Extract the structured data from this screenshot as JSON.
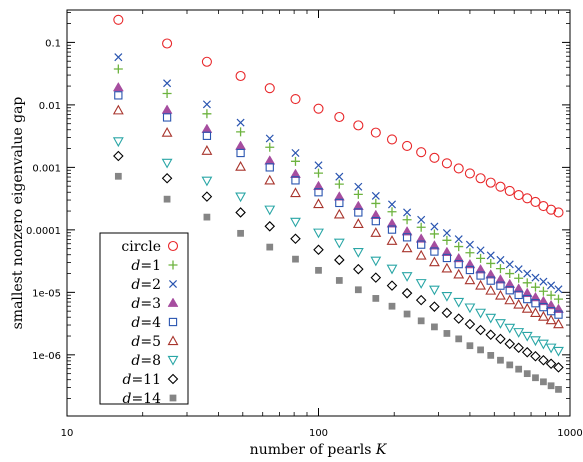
{
  "chart_data": {
    "type": "scatter",
    "title": "",
    "xlabel": "number of pearls K",
    "ylabel": "smallest nonzero eigenvalue gap",
    "x_scale": "log",
    "y_scale": "log",
    "xlim": [
      10,
      1000
    ],
    "ylim": [
      1.05e-07,
      0.33
    ],
    "grid": false,
    "legend_position": "bottom-left",
    "x_ticks": [
      {
        "value": 10,
        "label": "10"
      },
      {
        "value": 100,
        "label": "100"
      },
      {
        "value": 1000,
        "label": "1000"
      }
    ],
    "y_ticks": [
      {
        "value": 0.1,
        "label": "0.1"
      },
      {
        "value": 0.01,
        "label": "0.01"
      },
      {
        "value": 0.001,
        "label": "0.001"
      },
      {
        "value": 0.0001,
        "label": "0.0001"
      },
      {
        "value": 1e-05,
        "label": "1e-05"
      },
      {
        "value": 1e-06,
        "label": "1e-06"
      }
    ],
    "x": [
      16,
      25,
      36,
      49,
      64,
      81,
      100,
      121,
      144,
      169,
      196,
      225,
      256,
      289,
      324,
      361,
      400,
      441,
      484,
      529,
      576,
      625,
      676,
      729,
      784,
      841,
      900
    ],
    "series": [
      {
        "name": "circle",
        "label_prefix": "",
        "label_value": "circle",
        "marker": "circle",
        "color": "#e8272a",
        "values": [
          0.23,
          0.096,
          0.049,
          0.029,
          0.0185,
          0.0124,
          0.0087,
          0.0064,
          0.0047,
          0.0036,
          0.0028,
          0.0022,
          0.00175,
          0.00142,
          0.00116,
          0.00096,
          0.0008,
          0.00067,
          0.00057,
          0.00049,
          0.00042,
          0.00036,
          0.00032,
          0.00028,
          0.00024,
          0.00021,
          0.00019
        ]
      },
      {
        "name": "d=1",
        "label_prefix": "d",
        "label_value": "=1",
        "marker": "plus",
        "color": "#6db33f",
        "values": [
          0.0375,
          0.0152,
          0.0072,
          0.0037,
          0.0021,
          0.00125,
          0.00081,
          0.00054,
          0.00037,
          0.000265,
          0.000195,
          0.000145,
          0.00011,
          8.6e-05,
          6.8e-05,
          5.4e-05,
          4.3e-05,
          3.5e-05,
          2.9e-05,
          2.4e-05,
          2e-05,
          1.68e-05,
          1.42e-05,
          1.21e-05,
          1.04e-05,
          9e-06,
          7.8e-06
        ]
      },
      {
        "name": "d=2",
        "label_prefix": "d",
        "label_value": "=2",
        "marker": "cross",
        "color": "#2a55b0",
        "values": [
          0.058,
          0.0222,
          0.0102,
          0.0052,
          0.0029,
          0.0017,
          0.00108,
          0.00071,
          0.00049,
          0.00035,
          0.000255,
          0.00019,
          0.000145,
          0.000113,
          8.9e-05,
          7.1e-05,
          5.8e-05,
          4.7e-05,
          3.9e-05,
          3.3e-05,
          2.8e-05,
          2.35e-05,
          2e-05,
          1.72e-05,
          1.48e-05,
          1.29e-05,
          1.12e-05
        ]
      },
      {
        "name": "d=3",
        "label_prefix": "d",
        "label_value": "=3",
        "marker": "triangle-filled",
        "color": "#a64d9f",
        "values": [
          0.019,
          0.0083,
          0.0041,
          0.0022,
          0.00128,
          0.00078,
          0.0005,
          0.00034,
          0.00024,
          0.000172,
          0.000126,
          9.4e-05,
          7.2e-05,
          5.6e-05,
          4.4e-05,
          3.5e-05,
          2.8e-05,
          2.32e-05,
          1.92e-05,
          1.6e-05,
          1.35e-05,
          1.14e-05,
          9.7e-06,
          8.3e-06,
          7.2e-06,
          6.2e-06,
          5.4e-06
        ]
      },
      {
        "name": "d=4",
        "label_prefix": "d",
        "label_value": "=4",
        "marker": "square-open",
        "color": "#2a55b0",
        "values": [
          0.0142,
          0.0063,
          0.0032,
          0.0017,
          0.001,
          0.00062,
          0.0004,
          0.00027,
          0.00019,
          0.000138,
          0.000101,
          7.6e-05,
          5.8e-05,
          4.5e-05,
          3.55e-05,
          2.83e-05,
          2.28e-05,
          1.86e-05,
          1.54e-05,
          1.28e-05,
          1.08e-05,
          9.1e-06,
          7.8e-06,
          6.7e-06,
          5.8e-06,
          5e-06,
          4.4e-06
        ]
      },
      {
        "name": "d=5",
        "label_prefix": "d",
        "label_value": "=5",
        "marker": "triangle-open",
        "color": "#a8342c",
        "values": [
          0.0082,
          0.0036,
          0.00185,
          0.00103,
          0.00062,
          0.00039,
          0.00026,
          0.000177,
          0.000125,
          9e-05,
          6.7e-05,
          5.1e-05,
          3.9e-05,
          3.05e-05,
          2.42e-05,
          1.94e-05,
          1.57e-05,
          1.29e-05,
          1.07e-05,
          8.9e-06,
          7.5e-06,
          6.4e-06,
          5.5e-06,
          4.7e-06,
          4.1e-06,
          3.6e-06,
          3.1e-06
        ]
      },
      {
        "name": "d=8",
        "label_prefix": "d",
        "label_value": "=8",
        "marker": "triangle-down-open",
        "color": "#2aa6a6",
        "values": [
          0.0026,
          0.00118,
          0.00061,
          0.00034,
          0.00021,
          0.000134,
          9e-05,
          6.2e-05,
          4.4e-05,
          3.2e-05,
          2.38e-05,
          1.81e-05,
          1.4e-05,
          1.1e-05,
          8.7e-06,
          7e-06,
          5.7e-06,
          4.7e-06,
          3.9e-06,
          3.2e-06,
          2.7e-06,
          2.3e-06,
          2e-06,
          1.7e-06,
          1.5e-06,
          1.3e-06,
          1.15e-06
        ]
      },
      {
        "name": "d=11",
        "label_prefix": "d",
        "label_value": "=11",
        "marker": "diamond-open",
        "color": "#000000",
        "values": [
          0.00152,
          0.00067,
          0.00034,
          0.00019,
          0.000114,
          7.2e-05,
          4.8e-05,
          3.3e-05,
          2.35e-05,
          1.72e-05,
          1.28e-05,
          9.7e-06,
          7.5e-06,
          5.9e-06,
          4.7e-06,
          3.8e-06,
          3.1e-06,
          2.5e-06,
          2.1e-06,
          1.8e-06,
          1.5e-06,
          1.3e-06,
          1.1e-06,
          9.5e-07,
          8.2e-07,
          7.2e-07,
          6.3e-07
        ]
      },
      {
        "name": "d=14",
        "label_prefix": "d",
        "label_value": "=14",
        "marker": "square-filled",
        "color": "#858585",
        "values": [
          0.00072,
          0.00031,
          0.00016,
          8.8e-05,
          5.3e-05,
          3.4e-05,
          2.25e-05,
          1.55e-05,
          1.1e-05,
          8e-06,
          6e-06,
          4.5e-06,
          3.5e-06,
          2.8e-06,
          2.2e-06,
          1.8e-06,
          1.4e-06,
          1.2e-06,
          9.8e-07,
          8.2e-07,
          6.9e-07,
          5.9e-07,
          5e-07,
          4.3e-07,
          3.7e-07,
          3.2e-07,
          2.8e-07
        ]
      }
    ]
  }
}
